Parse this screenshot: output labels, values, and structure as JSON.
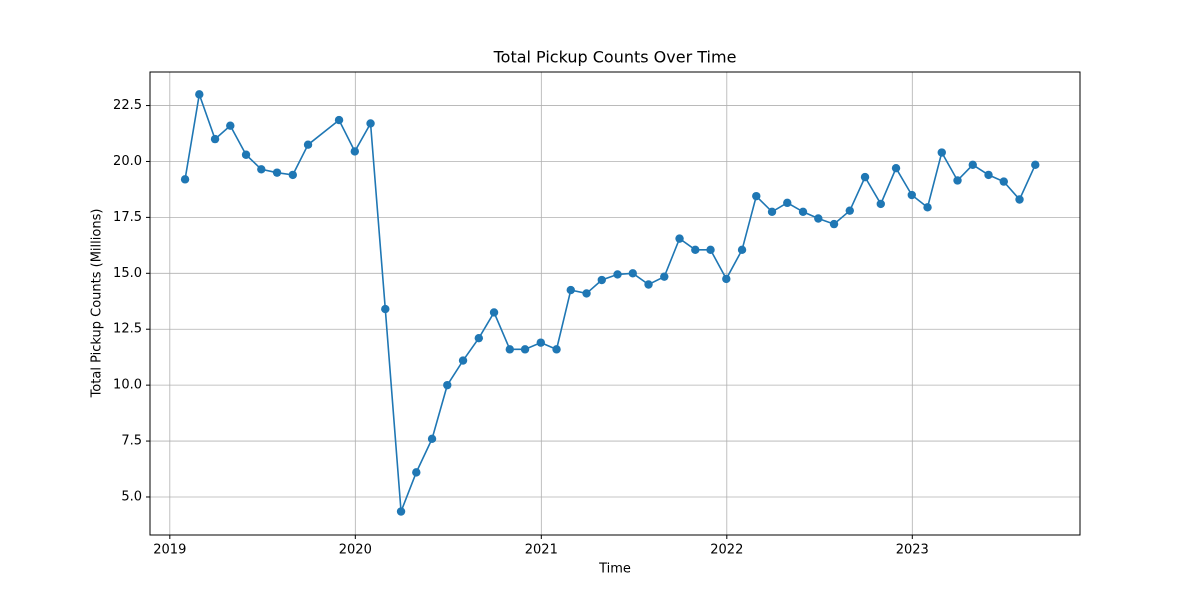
{
  "chart_data": {
    "type": "line",
    "title": "Total Pickup Counts Over Time",
    "x_label": "Time",
    "y_label": "Total Pickup Counts (Millions)",
    "series": [
      {
        "name": "Total Pickup Counts",
        "color": "#1f77b4",
        "x": [
          "2019-01",
          "2019-02",
          "2019-03",
          "2019-04",
          "2019-05",
          "2019-06",
          "2019-07",
          "2019-08",
          "2019-09",
          "2019-11",
          "2019-12",
          "2020-01",
          "2020-02",
          "2020-03",
          "2020-04",
          "2020-05",
          "2020-06",
          "2020-07",
          "2020-08",
          "2020-09",
          "2020-10",
          "2020-11",
          "2020-12",
          "2021-01",
          "2021-02",
          "2021-03",
          "2021-04",
          "2021-05",
          "2021-06",
          "2021-07",
          "2021-08",
          "2021-09",
          "2021-10",
          "2021-11",
          "2021-12",
          "2022-01",
          "2022-02",
          "2022-03",
          "2022-04",
          "2022-05",
          "2022-06",
          "2022-07",
          "2022-08",
          "2022-09",
          "2022-10",
          "2022-11",
          "2022-12",
          "2023-01",
          "2023-02",
          "2023-03",
          "2023-04",
          "2023-05",
          "2023-06",
          "2023-07",
          "2023-08"
        ],
        "values": [
          19.2,
          23.0,
          21.0,
          21.6,
          20.3,
          19.65,
          19.5,
          19.4,
          20.75,
          21.85,
          20.45,
          21.7,
          13.4,
          4.35,
          6.1,
          7.6,
          10.0,
          11.1,
          12.1,
          13.25,
          11.6,
          11.6,
          11.9,
          11.6,
          14.25,
          14.1,
          14.7,
          14.95,
          15.0,
          14.5,
          14.85,
          16.55,
          16.05,
          16.05,
          14.75,
          16.05,
          18.45,
          17.75,
          18.15,
          17.75,
          17.45,
          17.2,
          17.8,
          19.3,
          18.1,
          19.7,
          18.5,
          17.95,
          20.4,
          19.15,
          19.85,
          19.4,
          19.1,
          18.3,
          19.85
        ]
      }
    ],
    "xlim": [
      "2018-11-23",
      "2023-11-27"
    ],
    "xticks": [
      "2019",
      "2020",
      "2021",
      "2022",
      "2023"
    ],
    "ylim": [
      3.3,
      24.0
    ],
    "yticks": [
      {
        "value": 5,
        "label": "5.0"
      },
      7.5,
      {
        "value": 10,
        "label": "10.0"
      },
      12.5,
      {
        "value": 15,
        "label": "15.0"
      },
      17.5,
      {
        "value": 20,
        "label": "20.0"
      },
      22.5
    ],
    "grid": true
  }
}
